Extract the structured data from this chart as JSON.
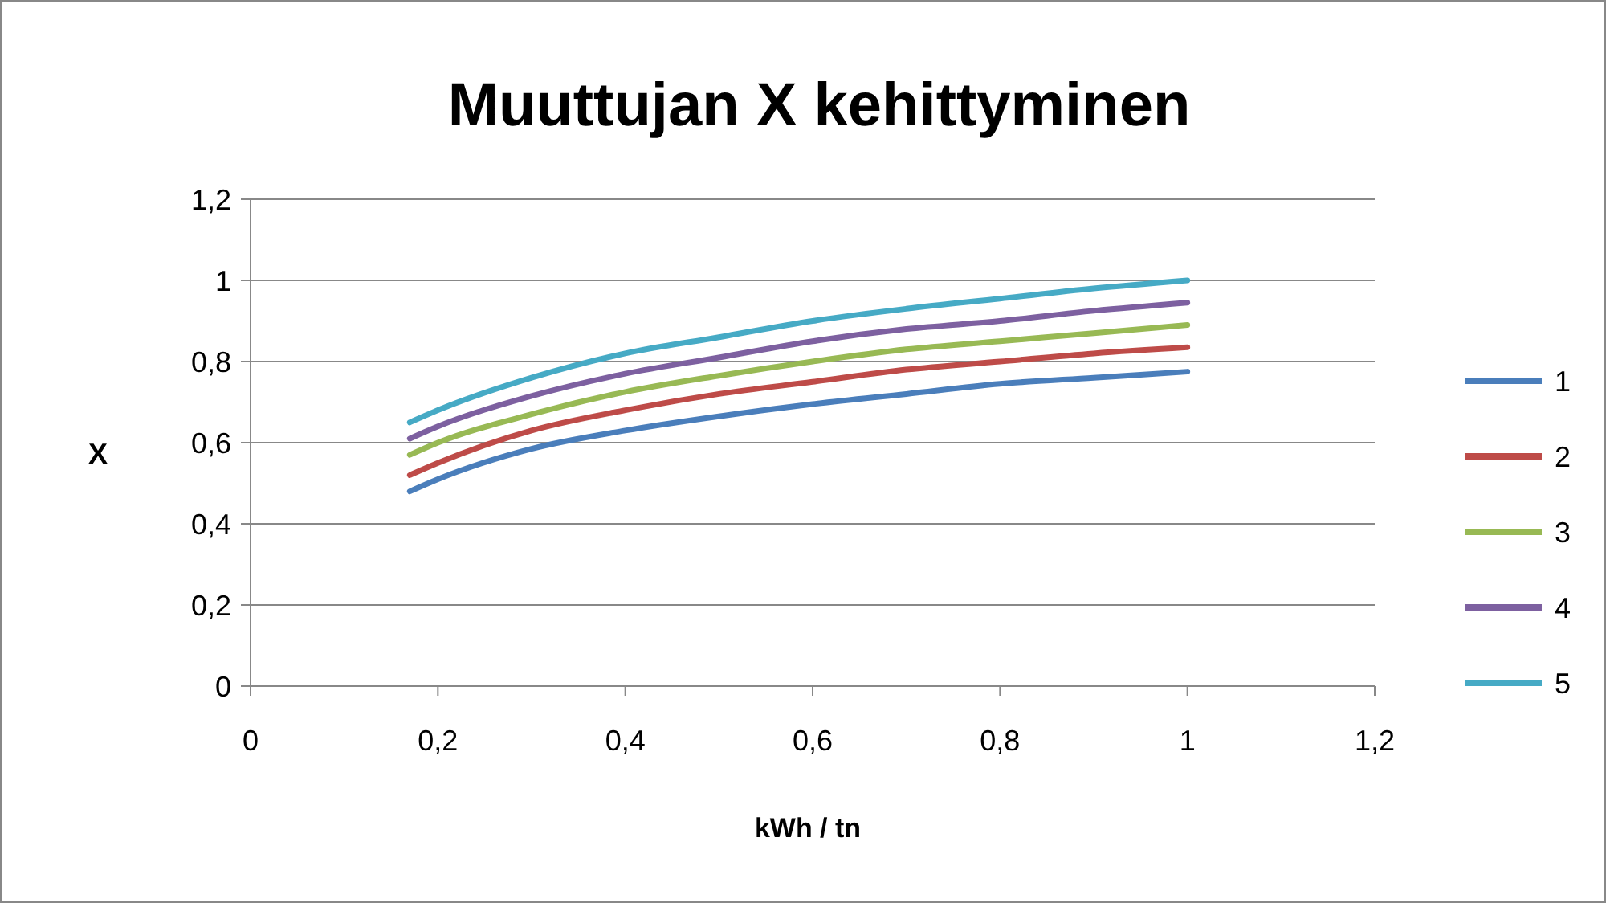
{
  "chart_data": {
    "type": "line",
    "title": "Muuttujan X kehittyminen",
    "xlabel": "kWh / tn",
    "ylabel": "X",
    "x": [
      0.17,
      0.2,
      0.3,
      0.4,
      0.5,
      0.6,
      0.7,
      0.8,
      0.9,
      1.0
    ],
    "series": [
      {
        "name": "1",
        "color": "#4a7ebb",
        "values": [
          0.48,
          0.51,
          0.585,
          0.63,
          0.665,
          0.695,
          0.72,
          0.745,
          0.76,
          0.775
        ]
      },
      {
        "name": "2",
        "color": "#be4b48",
        "values": [
          0.52,
          0.55,
          0.63,
          0.68,
          0.72,
          0.75,
          0.78,
          0.8,
          0.82,
          0.835
        ]
      },
      {
        "name": "3",
        "color": "#98b954",
        "values": [
          0.57,
          0.6,
          0.67,
          0.725,
          0.765,
          0.8,
          0.83,
          0.85,
          0.87,
          0.89
        ]
      },
      {
        "name": "4",
        "color": "#7d60a0",
        "values": [
          0.61,
          0.64,
          0.715,
          0.77,
          0.81,
          0.85,
          0.88,
          0.9,
          0.925,
          0.945
        ]
      },
      {
        "name": "5",
        "color": "#46aac5",
        "values": [
          0.65,
          0.68,
          0.76,
          0.82,
          0.86,
          0.9,
          0.93,
          0.955,
          0.98,
          1.0
        ]
      }
    ],
    "xlim": [
      0,
      1.2
    ],
    "ylim": [
      0,
      1.2
    ],
    "xticks": [
      0,
      {
        "value": 0.2,
        "label": "0,2"
      },
      {
        "value": 0.4,
        "label": "0,4"
      },
      {
        "value": 0.6,
        "label": "0,6"
      },
      {
        "value": 0.8,
        "label": "0,8"
      },
      1,
      {
        "value": 1.2,
        "label": "1,2"
      }
    ],
    "yticks": [
      0,
      {
        "value": 0.2,
        "label": "0,2"
      },
      {
        "value": 0.4,
        "label": "0,4"
      },
      {
        "value": 0.6,
        "label": "0,6"
      },
      {
        "value": 0.8,
        "label": "0,8"
      },
      1,
      {
        "value": 1.2,
        "label": "1,2"
      }
    ],
    "grid": "y",
    "legend": "right",
    "marker": "none",
    "line_style": "solid"
  }
}
